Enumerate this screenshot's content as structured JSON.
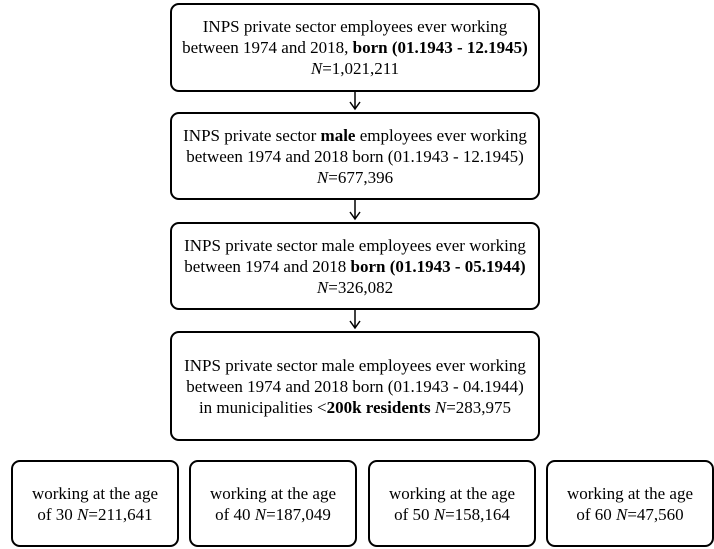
{
  "nodes": [
    {
      "parts": [
        "INPS private sector employees ever working between 1974 and 2018,",
        "born (01.1943 - 12.1945)",
        "N",
        "=1,021,211"
      ]
    },
    {
      "parts": [
        "INPS private sector",
        "male",
        "employees ever working between 1974 and 2018 born (01.1943 - 12.1945)",
        "N",
        "=677,396"
      ]
    },
    {
      "parts": [
        "INPS private sector male employees ever working between 1974 and 2018",
        "born (01.1943 - 05.1944)",
        "N",
        "=326,082"
      ]
    },
    {
      "parts": [
        "INPS private sector male employees ever working between 1974 and 2018 born (01.1943 - 04.1944) in municipalities <",
        "200k residents",
        "N",
        "=283,975"
      ]
    }
  ],
  "outcomes": [
    {
      "label": "working at the age of 30",
      "n_symbol": "N",
      "n_value": "=211,641"
    },
    {
      "label": "working at the age of 40",
      "n_symbol": "N",
      "n_value": "=187,049"
    },
    {
      "label": "working at the age of 50",
      "n_symbol": "N",
      "n_value": "=158,164"
    },
    {
      "label": "working at the age of 60",
      "n_symbol": "N",
      "n_value": "=47,560"
    }
  ]
}
